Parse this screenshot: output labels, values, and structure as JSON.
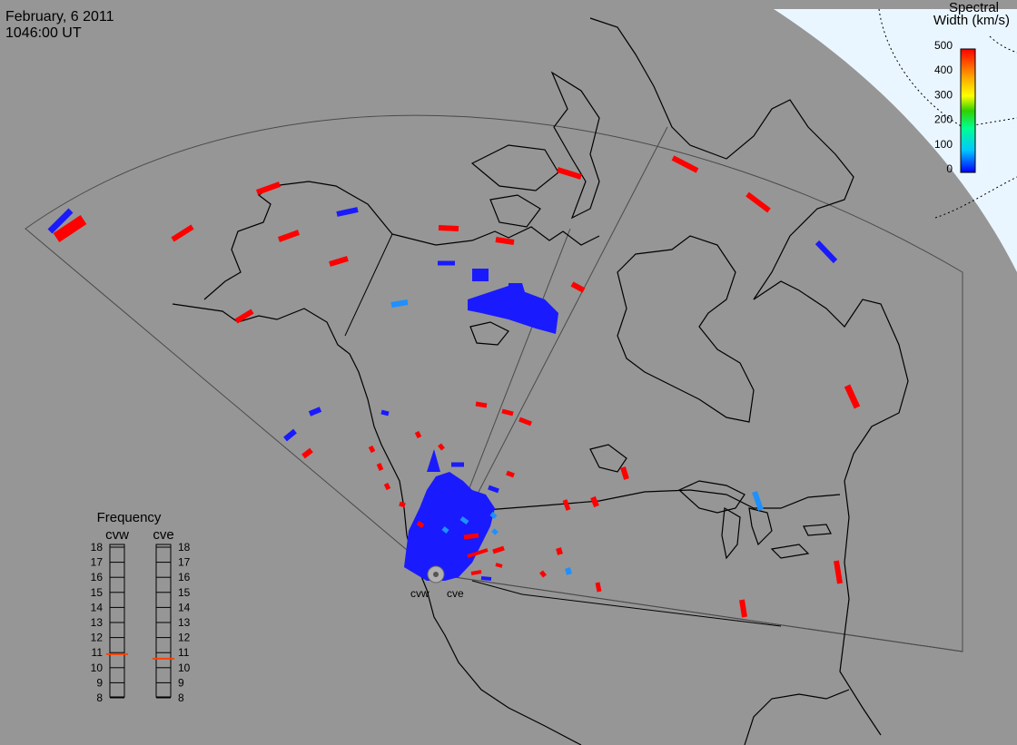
{
  "header": {
    "date": "February, 6 2011",
    "time": "1046:00 UT"
  },
  "scale": {
    "title_line1": "Spectral",
    "title_line2": "Width (km/s)",
    "ticks": [
      "500",
      "400",
      "300",
      "200",
      "100",
      "0"
    ],
    "colors": [
      "#0000ff",
      "#00c8ff",
      "#00ff90",
      "#30d000",
      "#ffff00",
      "#ffa000",
      "#ff0000"
    ]
  },
  "radars": {
    "west_label": "cvw",
    "east_label": "cve"
  },
  "frequency": {
    "title": "Frequency",
    "col_west": "cvw",
    "col_east": "cve",
    "ticks": [
      "18",
      "17",
      "16",
      "15",
      "14",
      "13",
      "12",
      "11",
      "10",
      "9",
      "8"
    ],
    "markers": {
      "cvw": 10.9,
      "cve": 10.6
    },
    "marker_color": "#ff4000"
  },
  "colors": {
    "background": "#969696",
    "sky": "#eaf6ff",
    "coastline": "#000000",
    "fov": "#444444",
    "high_width": "#ff0000",
    "low_width": "#1a1aff",
    "mid_width": "#1e90ff"
  }
}
